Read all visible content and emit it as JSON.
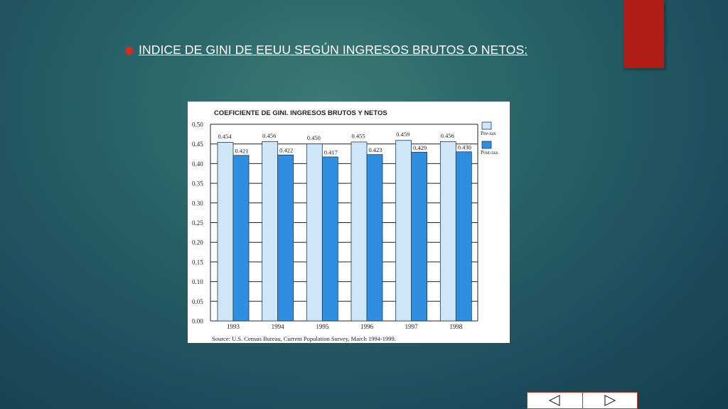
{
  "slide": {
    "heading": "INDICE DE GINI DE EEUU SEGÚN INGRESOS BRUTOS O NETOS:",
    "colors": {
      "accent_red": "#b01c16",
      "bullet": "#d42b1e"
    }
  },
  "nav": {
    "prev_icon": "left-triangle-icon",
    "next_icon": "right-triangle-icon"
  },
  "chart_data": {
    "type": "bar",
    "title": "COEFICIENTE DE GINI. INGRESOS BRUTOS Y NETOS",
    "categories": [
      "1993",
      "1994",
      "1995",
      "1996",
      "1997",
      "1998"
    ],
    "series": [
      {
        "name": "Pre-tax",
        "values": [
          0.454,
          0.456,
          0.45,
          0.455,
          0.459,
          0.456
        ],
        "value_labels": [
          "0.454",
          "0.456",
          "0.450",
          "0.455",
          "0.459",
          "0.456"
        ],
        "color": "#cfe6f7"
      },
      {
        "name": "Post-tax",
        "values": [
          0.421,
          0.422,
          0.417,
          0.423,
          0.429,
          0.43
        ],
        "value_labels": [
          "0.421",
          "0.422",
          "0.417",
          "0.423",
          "0.429",
          "0.430"
        ],
        "color": "#2f8ee0"
      }
    ],
    "ylim": [
      0,
      0.5
    ],
    "yticks": [
      "0.00",
      "0.05",
      "0.10",
      "0.15",
      "0.20",
      "0.25",
      "0.30",
      "0.35",
      "0.40",
      "0.45",
      "0.50"
    ],
    "grid": true,
    "legend": "right",
    "source": "Source:  U.S. Census Bureau, Current Population Survey, March 1994-1999."
  }
}
